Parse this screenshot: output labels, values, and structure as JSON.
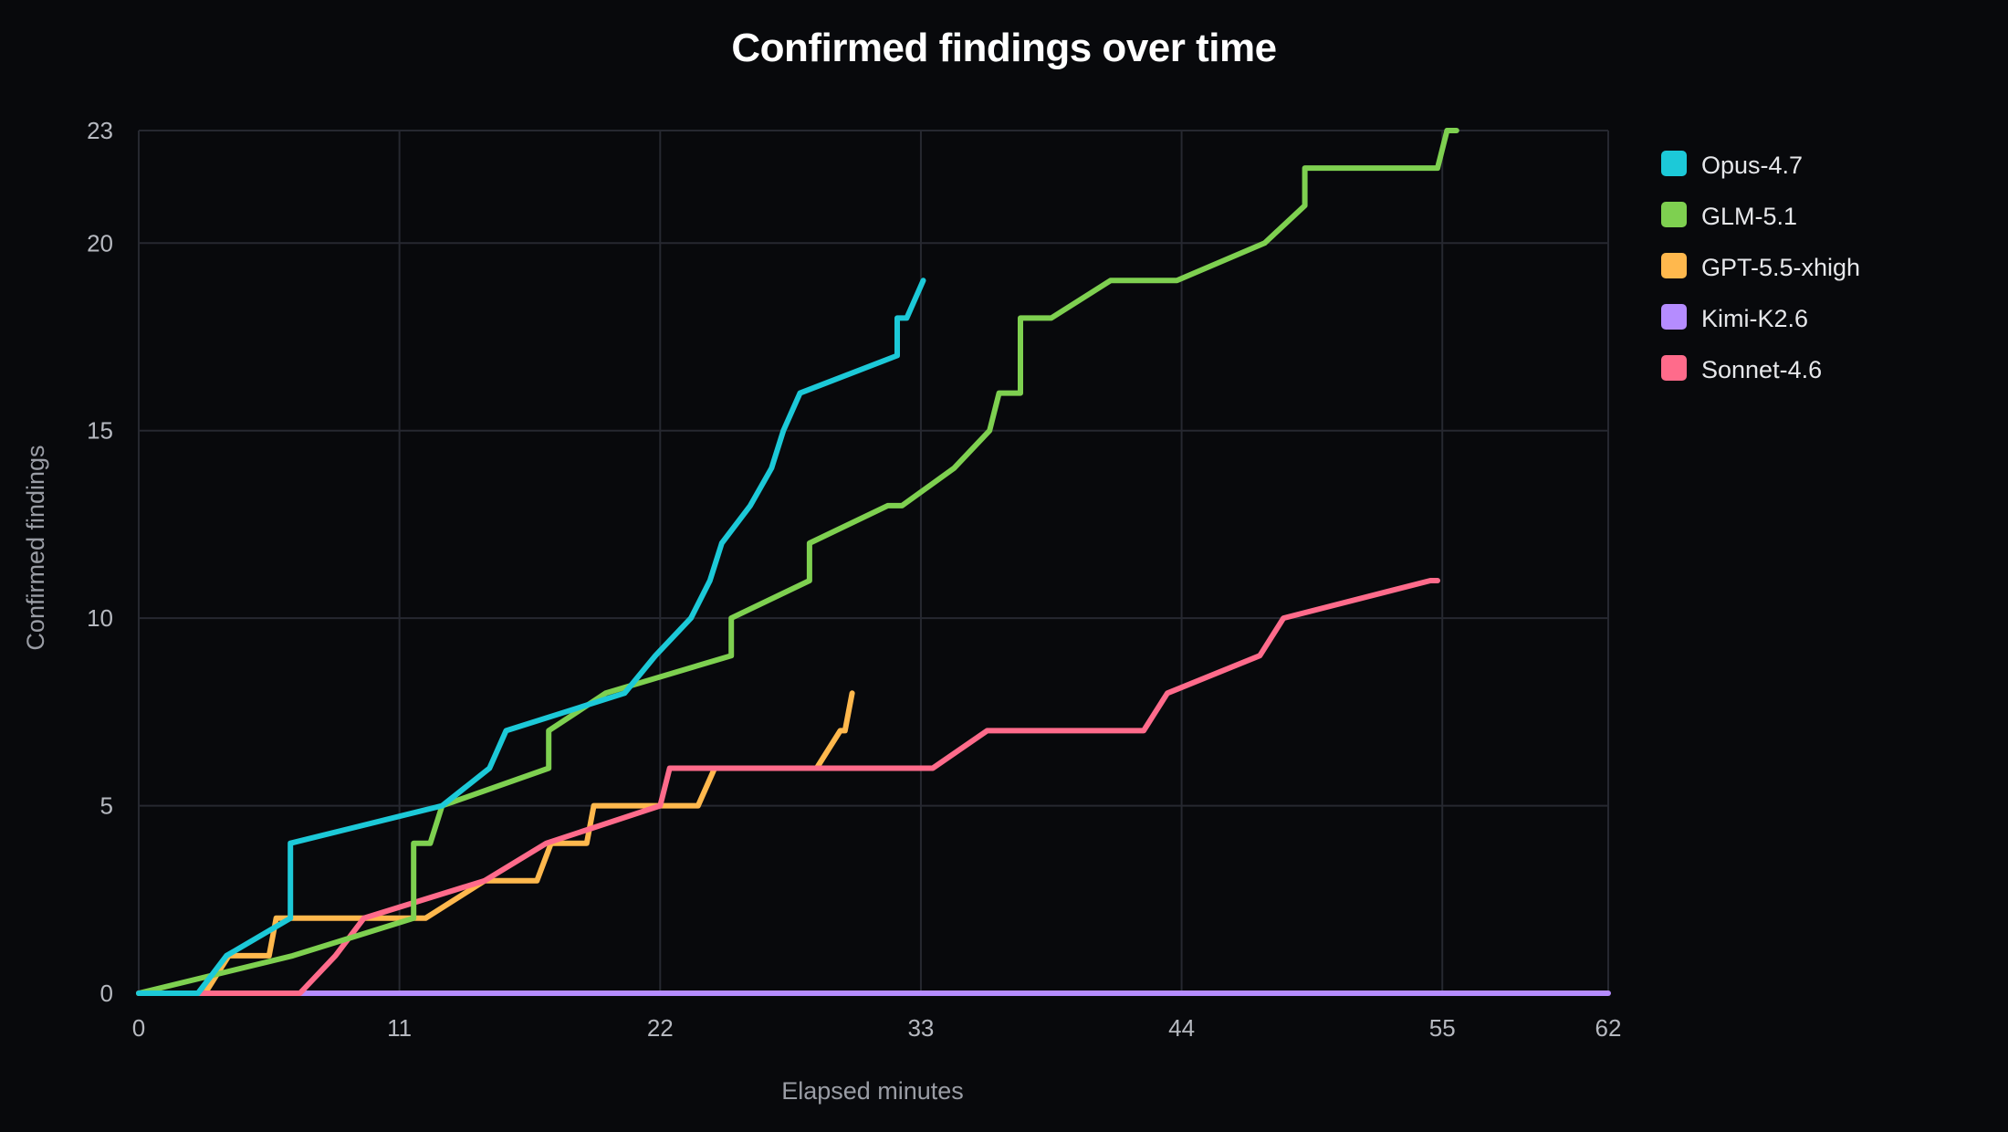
{
  "chart_data": {
    "type": "line",
    "title": "Confirmed findings over time",
    "xlabel": "Elapsed minutes",
    "ylabel": "Confirmed findings",
    "xlim": [
      0,
      62
    ],
    "ylim": [
      0,
      23
    ],
    "x_ticks": [
      0,
      11,
      22,
      33,
      44,
      55,
      62
    ],
    "y_ticks": [
      0,
      5,
      10,
      15,
      20,
      23
    ],
    "grid": true,
    "legend_position": "top-right",
    "series": [
      {
        "name": "Opus-4.7",
        "color": "#1cc9d8",
        "points": [
          [
            0,
            0
          ],
          [
            2.5,
            0
          ],
          [
            3.7,
            1
          ],
          [
            6.4,
            2
          ],
          [
            6.4,
            4
          ],
          [
            12.8,
            5
          ],
          [
            14.8,
            6
          ],
          [
            15.5,
            7
          ],
          [
            20.5,
            8
          ],
          [
            21.8,
            9
          ],
          [
            23.3,
            10
          ],
          [
            24.1,
            11
          ],
          [
            24.6,
            12
          ],
          [
            25.8,
            13
          ],
          [
            26.7,
            14
          ],
          [
            27.2,
            15
          ],
          [
            27.9,
            16
          ],
          [
            32,
            17
          ],
          [
            32,
            18
          ],
          [
            32.4,
            18
          ],
          [
            33.1,
            19
          ]
        ]
      },
      {
        "name": "GLM-5.1",
        "color": "#7ed050",
        "points": [
          [
            0,
            0
          ],
          [
            6.5,
            1
          ],
          [
            11.6,
            2
          ],
          [
            11.6,
            4
          ],
          [
            12.3,
            4
          ],
          [
            12.8,
            5
          ],
          [
            17.3,
            6
          ],
          [
            17.3,
            7
          ],
          [
            19.7,
            8
          ],
          [
            25,
            9
          ],
          [
            25,
            10
          ],
          [
            28.3,
            11
          ],
          [
            28.3,
            12
          ],
          [
            31.6,
            13
          ],
          [
            32.2,
            13
          ],
          [
            34.4,
            14
          ],
          [
            35.9,
            15
          ],
          [
            36.3,
            16
          ],
          [
            37.2,
            16
          ],
          [
            37.2,
            18
          ],
          [
            38.5,
            18
          ],
          [
            41,
            19
          ],
          [
            43.8,
            19
          ],
          [
            47.5,
            20
          ],
          [
            49.2,
            21
          ],
          [
            49.2,
            22
          ],
          [
            54.8,
            22
          ],
          [
            55.2,
            23
          ],
          [
            55.6,
            23
          ]
        ]
      },
      {
        "name": "GPT-5.5-xhigh",
        "color": "#ffb84d",
        "points": [
          [
            0,
            0
          ],
          [
            2.8,
            0
          ],
          [
            3.8,
            1
          ],
          [
            5.5,
            1
          ],
          [
            5.8,
            2
          ],
          [
            12.1,
            2
          ],
          [
            14.6,
            3
          ],
          [
            16.8,
            3
          ],
          [
            17.4,
            4
          ],
          [
            18.9,
            4
          ],
          [
            19.2,
            5
          ],
          [
            23.6,
            5
          ],
          [
            24.3,
            6
          ],
          [
            28.6,
            6
          ],
          [
            29.6,
            7
          ],
          [
            29.8,
            7
          ],
          [
            30.1,
            8
          ]
        ]
      },
      {
        "name": "Kimi-K2.6",
        "color": "#b58cff",
        "points": [
          [
            0,
            0
          ],
          [
            62,
            0
          ]
        ]
      },
      {
        "name": "Sonnet-4.6",
        "color": "#ff6b8b",
        "points": [
          [
            0,
            0
          ],
          [
            6.8,
            0
          ],
          [
            8.3,
            1
          ],
          [
            9.5,
            2
          ],
          [
            14.6,
            3
          ],
          [
            17.2,
            4
          ],
          [
            22,
            5
          ],
          [
            22.4,
            6
          ],
          [
            33.5,
            6
          ],
          [
            35.8,
            7
          ],
          [
            42.4,
            7
          ],
          [
            43.4,
            8
          ],
          [
            47.3,
            9
          ],
          [
            48.3,
            10
          ],
          [
            54.5,
            11
          ],
          [
            54.8,
            11
          ]
        ]
      }
    ]
  }
}
